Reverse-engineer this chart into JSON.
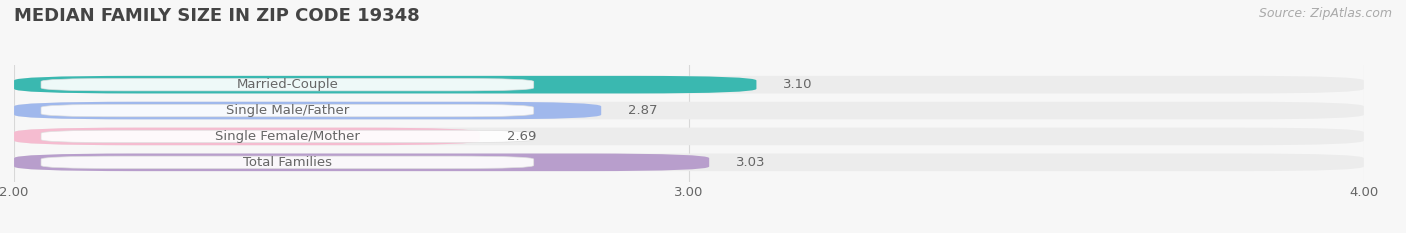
{
  "title": "MEDIAN FAMILY SIZE IN ZIP CODE 19348",
  "source": "Source: ZipAtlas.com",
  "categories": [
    "Married-Couple",
    "Single Male/Father",
    "Single Female/Mother",
    "Total Families"
  ],
  "values": [
    3.1,
    2.87,
    2.69,
    3.03
  ],
  "bar_colors": [
    "#3ab8b0",
    "#a0b8ec",
    "#f5bcd0",
    "#b89ecc"
  ],
  "bar_bg_color": "#ececec",
  "xlim": [
    2.0,
    4.0
  ],
  "xticks": [
    2.0,
    3.0,
    4.0
  ],
  "xtick_labels": [
    "2.00",
    "3.00",
    "4.00"
  ],
  "bar_height": 0.68,
  "label_fontsize": 9.5,
  "value_fontsize": 9.5,
  "title_fontsize": 13,
  "source_fontsize": 9,
  "background_color": "#f7f7f7",
  "text_color": "#666666",
  "title_color": "#444444",
  "source_color": "#aaaaaa",
  "label_bg_color": "#ffffff",
  "grid_color": "#d8d8d8"
}
